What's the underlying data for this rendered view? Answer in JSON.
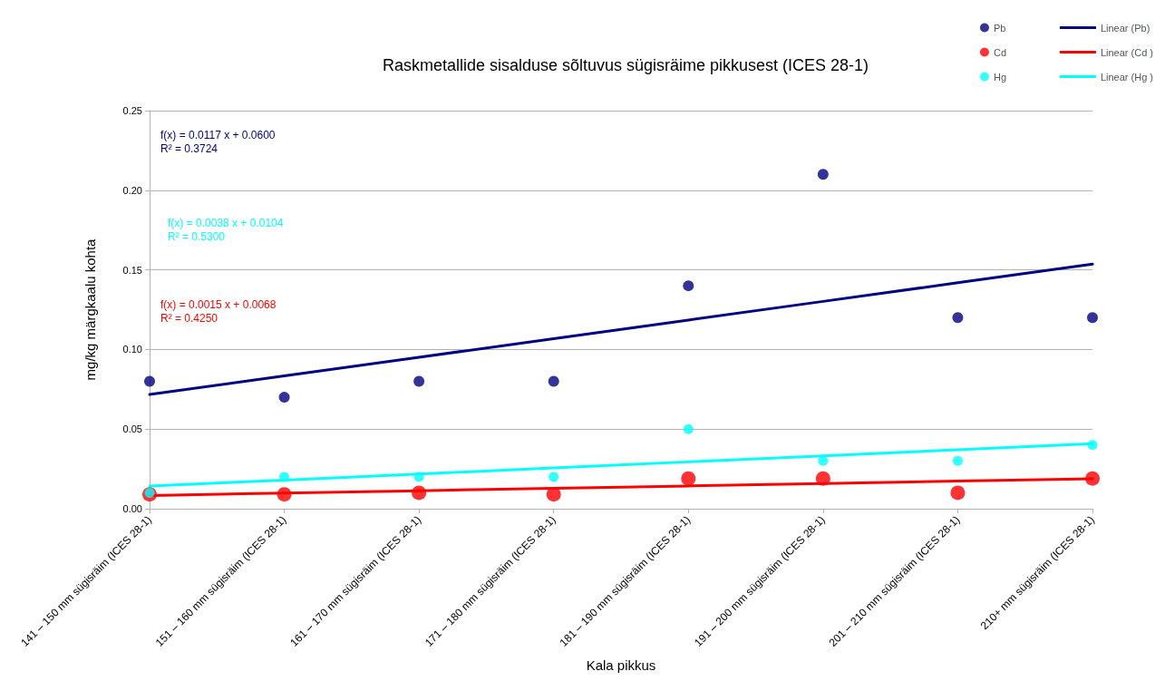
{
  "chart_data": {
    "type": "scatter",
    "title": "Raskmetallide sisalduse sõltuvus sügisräime pikkusest (ICES 28-1)",
    "xlabel": "Kala pikkus",
    "ylabel": "mg/kg märgkaalu kohta",
    "categories": [
      "141 – 150 mm sügisräim (ICES 28-1)",
      "151 – 160 mm sügisräim (ICES 28-1)",
      "161 – 170 mm sügisräim (ICES 28-1)",
      "171 – 180 mm sügisräim (ICES 28-1)",
      "181 – 190 mm sügisräim (ICES 28-1)",
      "191 – 200 mm sügisräim (ICES 28-1)",
      "201 – 210 mm sügisräim (ICES 28-1)",
      "210+ mm sügisräim (ICES 28-1)"
    ],
    "series": [
      {
        "name": "Pb",
        "marker": "circle",
        "color": "#000080",
        "values": [
          0.08,
          0.07,
          0.08,
          0.08,
          0.14,
          0.21,
          0.12,
          0.12
        ]
      },
      {
        "name": "Linear (Pb)",
        "type": "line",
        "marker": "none",
        "color": "#000080",
        "values": [
          0.0717,
          0.0834,
          0.0951,
          0.1068,
          0.1185,
          0.1302,
          0.1419,
          0.1536
        ]
      },
      {
        "name": "Cd",
        "marker": "circle",
        "color": "#ff0000",
        "values": [
          0.009,
          0.009,
          0.01,
          0.009,
          0.019,
          0.019,
          0.01,
          0.019
        ]
      },
      {
        "name": "Linear (Cd )",
        "type": "line",
        "marker": "none",
        "color": "#ff0000",
        "values": [
          0.0083,
          0.0098,
          0.0113,
          0.0128,
          0.0143,
          0.0158,
          0.0173,
          0.0188
        ]
      },
      {
        "name": "Hg",
        "marker": "circle",
        "color": "#00ffff",
        "values": [
          0.01,
          0.02,
          0.02,
          0.02,
          0.05,
          0.03,
          0.03,
          0.04
        ]
      },
      {
        "name": "Linear (Hg )",
        "type": "line",
        "marker": "none",
        "color": "#00ffff",
        "values": [
          0.0142,
          0.018,
          0.0218,
          0.0256,
          0.0294,
          0.0332,
          0.037,
          0.0408
        ]
      }
    ],
    "annotations": [
      "f(x) = 0.0117 x + 0.0600\nR² = 0.3724",
      "f(x) = 0.0038 x + 0.0104\nR² = 0.5300",
      "f(x) = 0.0015 x + 0.0068\nR² = 0.4250"
    ],
    "ylim": [
      0,
      0.25
    ],
    "yticks": [
      {
        "value": 0,
        "label": "0.00"
      },
      0.05,
      {
        "value": 0.1,
        "label": "0.10"
      },
      0.15,
      {
        "value": 0.2,
        "label": "0.20"
      },
      0.25
    ],
    "grid": "y",
    "legend": "top right",
    "line_style": "solid"
  }
}
